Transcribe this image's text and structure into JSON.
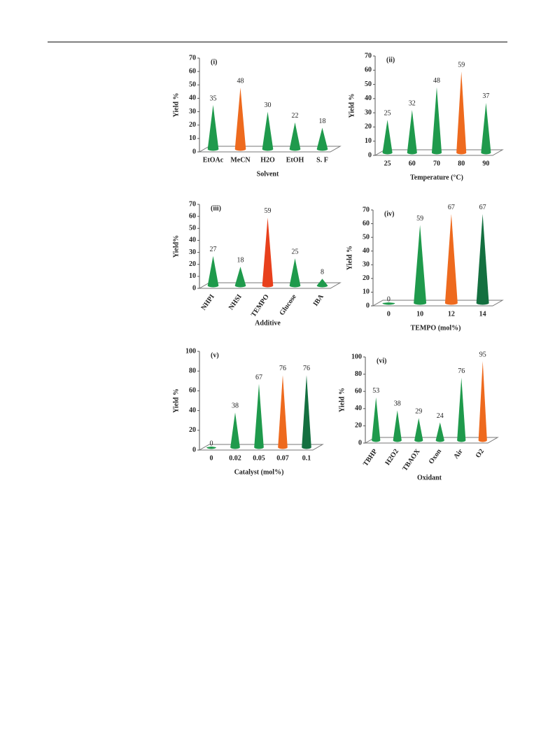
{
  "chart_data": [
    {
      "type": "cone",
      "panel": "(i)",
      "y_label": "Yield %",
      "x_label": "Solvent",
      "categories": [
        "EtOAc",
        "MeCN",
        "H2O",
        "EtOH",
        "S. F"
      ],
      "values": [
        35,
        48,
        30,
        22,
        18
      ],
      "colors": [
        "#1f9a4c",
        "#ee6a1e",
        "#1f9a4c",
        "#1f9a4c",
        "#1f9a4c"
      ],
      "ylim": [
        0,
        70
      ],
      "yticks": [
        0,
        10,
        20,
        30,
        40,
        50,
        60,
        70
      ]
    },
    {
      "type": "cone",
      "panel": "(ii)",
      "y_label": "Yield %",
      "x_label": "Temperature (°C)",
      "categories": [
        "25",
        "60",
        "70",
        "80",
        "90"
      ],
      "values": [
        25,
        32,
        48,
        59,
        37
      ],
      "colors": [
        "#1f9a4c",
        "#1f9a4c",
        "#1f9a4c",
        "#ee6a1e",
        "#1f9a4c"
      ],
      "ylim": [
        0,
        70
      ],
      "yticks": [
        0,
        10,
        20,
        30,
        40,
        50,
        60,
        70
      ]
    },
    {
      "type": "cone",
      "panel": "(iii)",
      "y_label": "Yield%",
      "x_label": "Additive",
      "categories": [
        "NHPI",
        "NHSI",
        "TEMPO",
        "Glucose",
        "IBA"
      ],
      "values": [
        27,
        18,
        59,
        25,
        8
      ],
      "colors": [
        "#1f9a4c",
        "#1f9a4c",
        "#e8401c",
        "#1f9a4c",
        "#1f9a4c"
      ],
      "ylim": [
        0,
        70
      ],
      "yticks": [
        0,
        10,
        20,
        30,
        40,
        50,
        60,
        70
      ]
    },
    {
      "type": "cone",
      "panel": "(iv)",
      "y_label": "Yield %",
      "x_label": "TEMPO (mol%)",
      "categories": [
        "0",
        "10",
        "12",
        "14"
      ],
      "values": [
        0,
        59,
        67,
        67
      ],
      "colors": [
        "#1f9a4c",
        "#1f9a4c",
        "#ee6a1e",
        "#147040"
      ],
      "ylim": [
        0,
        70
      ],
      "yticks": [
        0,
        10,
        20,
        30,
        40,
        50,
        60,
        70
      ]
    },
    {
      "type": "cone",
      "panel": "(v)",
      "y_label": "Yield %",
      "x_label": "Catalyst (mol%)",
      "categories": [
        "0",
        "0.02",
        "0.05",
        "0.07",
        "0.1"
      ],
      "values": [
        0,
        38,
        67,
        76,
        76
      ],
      "colors": [
        "#1f9a4c",
        "#1f9a4c",
        "#1f9a4c",
        "#ee6a1e",
        "#147040"
      ],
      "ylim": [
        0,
        100
      ],
      "yticks": [
        0,
        20,
        40,
        60,
        80,
        100
      ]
    },
    {
      "type": "cone",
      "panel": "(vi)",
      "y_label": "Yield %",
      "x_label": "Oxidant",
      "categories": [
        "TBHP",
        "H2O2",
        "TBAOX",
        "Oxon",
        "Air",
        "O2"
      ],
      "values": [
        53,
        38,
        29,
        24,
        76,
        95
      ],
      "colors": [
        "#1f9a4c",
        "#1f9a4c",
        "#1f9a4c",
        "#1f9a4c",
        "#1f9a4c",
        "#ee6a1e"
      ],
      "ylim": [
        0,
        100
      ],
      "yticks": [
        0,
        20,
        40,
        60,
        80,
        100
      ]
    }
  ]
}
